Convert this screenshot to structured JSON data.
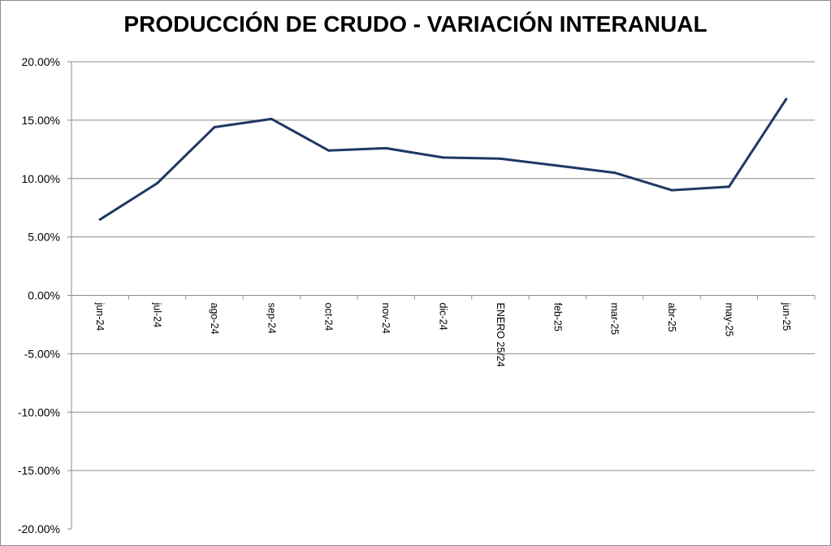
{
  "chart_data": {
    "type": "line",
    "title": "PRODUCCIÓN DE CRUDO - VARIACIÓN INTERANUAL",
    "xlabel": "",
    "ylabel": "",
    "categories": [
      "jun-24",
      "jul-24",
      "ago-24",
      "sep-24",
      "oct-24",
      "nov-24",
      "dic-24",
      "ENERO 25/24",
      "feb-25",
      "mar-25",
      "abr-25",
      "may-25",
      "jun-25"
    ],
    "series": [
      {
        "values": [
          6.5,
          9.6,
          14.4,
          15.1,
          12.4,
          12.6,
          11.8,
          11.7,
          11.1,
          10.5,
          9.0,
          9.3,
          16.8
        ],
        "color": "#1f3864"
      }
    ],
    "ylim": [
      -20,
      20
    ],
    "ytick_step": 5,
    "ytick_labels": [
      "20.00%",
      "15.00%",
      "10.00%",
      "5.00%",
      "0.00%",
      "-5.00%",
      "-10.00%",
      "-15.00%",
      "-20.00%"
    ],
    "grid": true,
    "gridline_color": "#8c8c8c",
    "legend": "none"
  }
}
